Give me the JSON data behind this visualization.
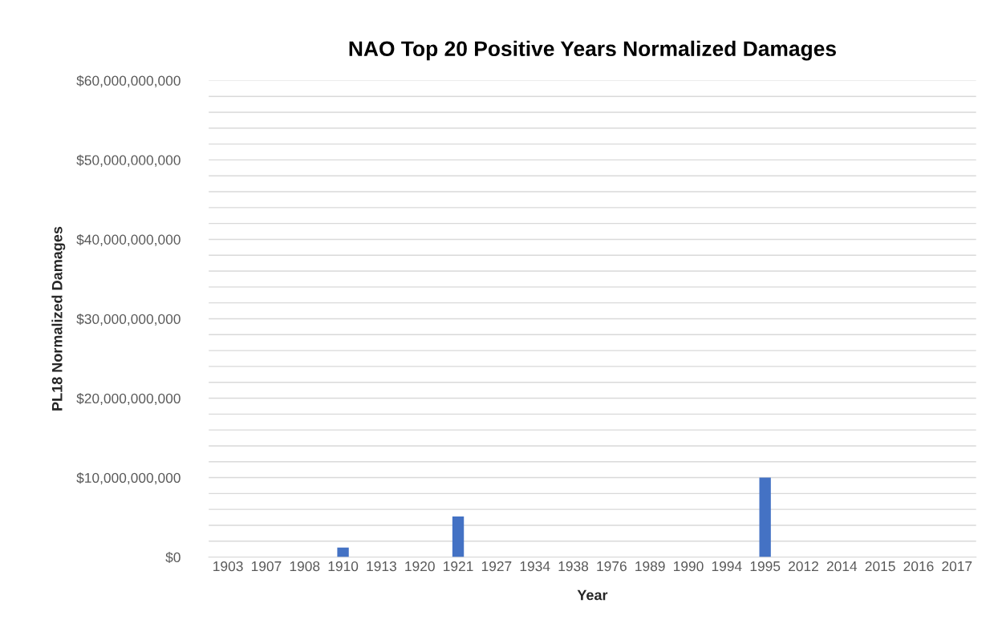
{
  "chart_data": {
    "type": "bar",
    "title": "NAO Top 20 Positive Years Normalized Damages",
    "xlabel": "Year",
    "ylabel": "PL18 Normalized Damages",
    "categories": [
      "1903",
      "1907",
      "1908",
      "1910",
      "1913",
      "1920",
      "1921",
      "1927",
      "1934",
      "1938",
      "1976",
      "1989",
      "1990",
      "1994",
      "1995",
      "2012",
      "2014",
      "2015",
      "2016",
      "2017"
    ],
    "values": [
      0,
      0,
      0,
      1200000000,
      0,
      0,
      5100000000,
      0,
      0,
      0,
      0,
      0,
      0,
      0,
      10000000000,
      0,
      0,
      0,
      0,
      0
    ],
    "color": "#4472c4",
    "ylim": [
      0,
      60000000000
    ],
    "yticks": [
      {
        "value": 0,
        "label": "$0"
      },
      {
        "value": 2000000000,
        "label": null
      },
      {
        "value": 4000000000,
        "label": null
      },
      {
        "value": 6000000000,
        "label": null
      },
      {
        "value": 8000000000,
        "label": null
      },
      {
        "value": 10000000000,
        "label": "$10,000,000,000"
      },
      {
        "value": 12000000000,
        "label": null
      },
      {
        "value": 14000000000,
        "label": null
      },
      {
        "value": 16000000000,
        "label": null
      },
      {
        "value": 18000000000,
        "label": null
      },
      {
        "value": 20000000000,
        "label": "$20,000,000,000"
      },
      {
        "value": 22000000000,
        "label": null
      },
      {
        "value": 24000000000,
        "label": null
      },
      {
        "value": 26000000000,
        "label": null
      },
      {
        "value": 28000000000,
        "label": null
      },
      {
        "value": 30000000000,
        "label": "$30,000,000,000"
      },
      {
        "value": 32000000000,
        "label": null
      },
      {
        "value": 34000000000,
        "label": null
      },
      {
        "value": 36000000000,
        "label": null
      },
      {
        "value": 38000000000,
        "label": null
      },
      {
        "value": 40000000000,
        "label": "$40,000,000,000"
      },
      {
        "value": 42000000000,
        "label": null
      },
      {
        "value": 44000000000,
        "label": null
      },
      {
        "value": 46000000000,
        "label": null
      },
      {
        "value": 48000000000,
        "label": null
      },
      {
        "value": 50000000000,
        "label": "$50,000,000,000"
      },
      {
        "value": 52000000000,
        "label": null
      },
      {
        "value": 54000000000,
        "label": null
      },
      {
        "value": 56000000000,
        "label": null
      },
      {
        "value": 58000000000,
        "label": null
      },
      {
        "value": 60000000000,
        "label": "$60,000,000,000"
      }
    ],
    "grid": "y"
  }
}
